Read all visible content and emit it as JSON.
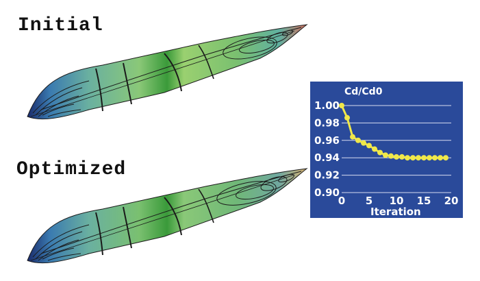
{
  "labels": {
    "initial": "Initial",
    "optimized": "Optimized"
  },
  "colors": {
    "panel_bg": "#2a4a9a",
    "series": "#f0e84a",
    "grid": "#d8dcf0",
    "axis_text": "#ffffff",
    "hull_mid": "#7ac070",
    "hull_band": "#3a9a3a",
    "hull_tip_initial": "#d07060",
    "hull_tip_optimized": "#d6b070",
    "contour": "#1a1a1a"
  },
  "chart_data": {
    "type": "line",
    "title": "Cd/Cd0",
    "xlabel": "Iteration",
    "ylabel": "Cd/Cd0",
    "xlim": [
      0,
      20
    ],
    "ylim": [
      0.9,
      1.0
    ],
    "xticks": [
      "0",
      "5",
      "10",
      "15",
      "20"
    ],
    "yticks": [
      "1.00",
      "0.98",
      "0.96",
      "0.94",
      "0.92",
      "0.90"
    ],
    "grid": true,
    "series": [
      {
        "x": [
          0,
          1,
          2,
          3,
          4,
          5,
          6,
          7,
          8,
          9,
          10,
          11,
          12,
          13,
          14,
          15,
          16,
          17,
          18,
          19
        ],
        "values": [
          1.0,
          0.986,
          0.964,
          0.96,
          0.957,
          0.954,
          0.95,
          0.946,
          0.943,
          0.942,
          0.941,
          0.941,
          0.94,
          0.94,
          0.94,
          0.94,
          0.94,
          0.94,
          0.94,
          0.94
        ]
      }
    ]
  }
}
